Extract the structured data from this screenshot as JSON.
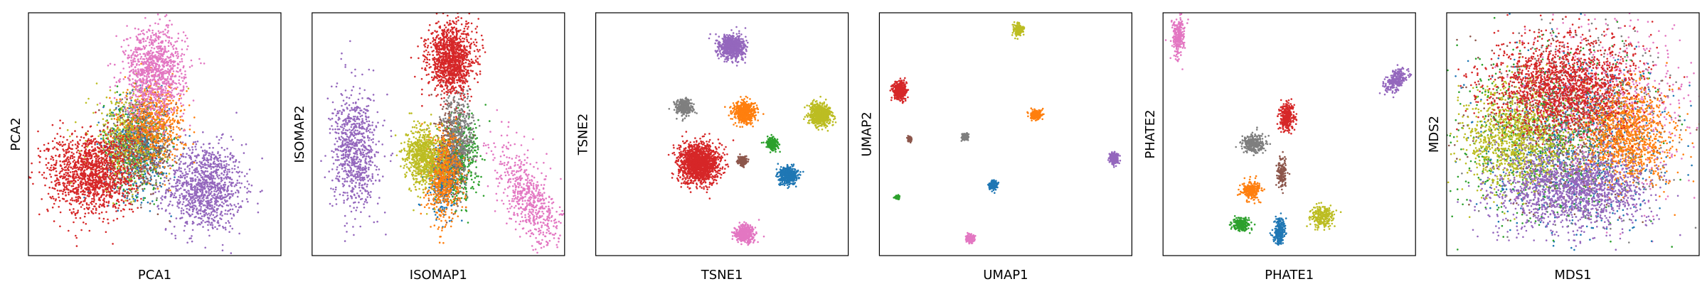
{
  "colors": {
    "blue": "#1f77b4",
    "orange": "#ff7f0e",
    "green": "#2ca02c",
    "red": "#d62728",
    "purple": "#9467bd",
    "brown": "#8c564b",
    "pink": "#e377c2",
    "gray": "#7f7f7f",
    "olive": "#bcbd22"
  },
  "chart_data": [
    {
      "type": "scatter",
      "xlabel": "PCA1",
      "ylabel": "PCA2",
      "xlim": [
        0,
        1
      ],
      "ylim": [
        0,
        1
      ],
      "ticks": "none",
      "grid": false,
      "series": [
        {
          "color": "#9467bd",
          "n": 1100,
          "cx": 0.7,
          "cy": 0.28,
          "sx": 0.075,
          "sy": 0.09,
          "rot": 0
        },
        {
          "color": "#1f77b4",
          "n": 500,
          "cx": 0.43,
          "cy": 0.45,
          "sx": 0.065,
          "sy": 0.1,
          "rot": 0
        },
        {
          "color": "#2ca02c",
          "n": 350,
          "cx": 0.42,
          "cy": 0.45,
          "sx": 0.06,
          "sy": 0.09,
          "rot": 0
        },
        {
          "color": "#7f7f7f",
          "n": 350,
          "cx": 0.44,
          "cy": 0.47,
          "sx": 0.06,
          "sy": 0.09,
          "rot": 0
        },
        {
          "color": "#bcbd22",
          "n": 450,
          "cx": 0.38,
          "cy": 0.47,
          "sx": 0.07,
          "sy": 0.1,
          "rot": 0
        },
        {
          "color": "#8c564b",
          "n": 300,
          "cx": 0.46,
          "cy": 0.45,
          "sx": 0.06,
          "sy": 0.09,
          "rot": 0
        },
        {
          "color": "#ff7f0e",
          "n": 550,
          "cx": 0.5,
          "cy": 0.55,
          "sx": 0.06,
          "sy": 0.08,
          "rot": 0
        },
        {
          "color": "#e377c2",
          "n": 1000,
          "cx": 0.5,
          "cy": 0.76,
          "sx": 0.06,
          "sy": 0.09,
          "rot": 0
        },
        {
          "color": "#d62728",
          "n": 1400,
          "cx": 0.25,
          "cy": 0.34,
          "sx": 0.085,
          "sy": 0.085,
          "rot": 0
        }
      ]
    },
    {
      "type": "scatter",
      "xlabel": "ISOMAP1",
      "ylabel": "ISOMAP2",
      "xlim": [
        0,
        1
      ],
      "ylim": [
        0,
        1
      ],
      "ticks": "none",
      "grid": false,
      "series": [
        {
          "color": "#9467bd",
          "n": 800,
          "cx": 0.17,
          "cy": 0.43,
          "sx": 0.045,
          "sy": 0.12,
          "rot": 0
        },
        {
          "color": "#e377c2",
          "n": 600,
          "cx": 0.86,
          "cy": 0.24,
          "sx": 0.045,
          "sy": 0.12,
          "rot": 0.45
        },
        {
          "color": "#1f77b4",
          "n": 400,
          "cx": 0.52,
          "cy": 0.32,
          "sx": 0.03,
          "sy": 0.07,
          "rot": 0
        },
        {
          "color": "#2ca02c",
          "n": 400,
          "cx": 0.59,
          "cy": 0.4,
          "sx": 0.035,
          "sy": 0.09,
          "rot": 0
        },
        {
          "color": "#8c564b",
          "n": 300,
          "cx": 0.55,
          "cy": 0.42,
          "sx": 0.03,
          "sy": 0.1,
          "rot": 0
        },
        {
          "color": "#7f7f7f",
          "n": 450,
          "cx": 0.58,
          "cy": 0.49,
          "sx": 0.03,
          "sy": 0.1,
          "rot": 0
        },
        {
          "color": "#ff7f0e",
          "n": 650,
          "cx": 0.52,
          "cy": 0.33,
          "sx": 0.035,
          "sy": 0.09,
          "rot": 0
        },
        {
          "color": "#bcbd22",
          "n": 700,
          "cx": 0.44,
          "cy": 0.41,
          "sx": 0.035,
          "sy": 0.06,
          "rot": 0
        },
        {
          "color": "#d62728",
          "n": 1200,
          "cx": 0.55,
          "cy": 0.81,
          "sx": 0.045,
          "sy": 0.07,
          "rot": 0
        }
      ]
    },
    {
      "type": "scatter",
      "xlabel": "TSNE1",
      "ylabel": "TSNE2",
      "xlim": [
        0,
        1
      ],
      "ylim": [
        0,
        1
      ],
      "ticks": "none",
      "grid": false,
      "series": [
        {
          "color": "#9467bd",
          "n": 700,
          "cx": 0.54,
          "cy": 0.86,
          "sx": 0.025,
          "sy": 0.025,
          "rot": 0
        },
        {
          "color": "#7f7f7f",
          "n": 350,
          "cx": 0.35,
          "cy": 0.61,
          "sx": 0.016,
          "sy": 0.016,
          "rot": 0
        },
        {
          "color": "#ff7f0e",
          "n": 550,
          "cx": 0.59,
          "cy": 0.59,
          "sx": 0.022,
          "sy": 0.022,
          "rot": 0
        },
        {
          "color": "#bcbd22",
          "n": 650,
          "cx": 0.89,
          "cy": 0.58,
          "sx": 0.022,
          "sy": 0.022,
          "rot": 0
        },
        {
          "color": "#2ca02c",
          "n": 200,
          "cx": 0.7,
          "cy": 0.46,
          "sx": 0.012,
          "sy": 0.012,
          "rot": 0
        },
        {
          "color": "#8c564b",
          "n": 150,
          "cx": 0.58,
          "cy": 0.39,
          "sx": 0.009,
          "sy": 0.009,
          "rot": 0
        },
        {
          "color": "#d62728",
          "n": 1500,
          "cx": 0.41,
          "cy": 0.38,
          "sx": 0.04,
          "sy": 0.04,
          "rot": 0
        },
        {
          "color": "#1f77b4",
          "n": 450,
          "cx": 0.76,
          "cy": 0.33,
          "sx": 0.018,
          "sy": 0.018,
          "rot": 0
        },
        {
          "color": "#e377c2",
          "n": 450,
          "cx": 0.59,
          "cy": 0.09,
          "sx": 0.018,
          "sy": 0.018,
          "rot": 0
        }
      ]
    },
    {
      "type": "scatter",
      "xlabel": "UMAP1",
      "ylabel": "UMAP2",
      "xlim": [
        0,
        1
      ],
      "ylim": [
        0,
        1
      ],
      "ticks": "none",
      "grid": false,
      "series": [
        {
          "color": "#bcbd22",
          "n": 200,
          "cx": 0.55,
          "cy": 0.93,
          "sx": 0.01,
          "sy": 0.012,
          "rot": 0
        },
        {
          "color": "#d62728",
          "n": 500,
          "cx": 0.08,
          "cy": 0.68,
          "sx": 0.012,
          "sy": 0.018,
          "rot": 0
        },
        {
          "color": "#ff7f0e",
          "n": 200,
          "cx": 0.62,
          "cy": 0.58,
          "sx": 0.011,
          "sy": 0.01,
          "rot": 0
        },
        {
          "color": "#8c564b",
          "n": 60,
          "cx": 0.12,
          "cy": 0.48,
          "sx": 0.004,
          "sy": 0.005,
          "rot": 0
        },
        {
          "color": "#7f7f7f",
          "n": 120,
          "cx": 0.34,
          "cy": 0.49,
          "sx": 0.007,
          "sy": 0.007,
          "rot": 0
        },
        {
          "color": "#9467bd",
          "n": 200,
          "cx": 0.93,
          "cy": 0.4,
          "sx": 0.01,
          "sy": 0.013,
          "rot": 0
        },
        {
          "color": "#1f77b4",
          "n": 150,
          "cx": 0.45,
          "cy": 0.29,
          "sx": 0.008,
          "sy": 0.009,
          "rot": 0
        },
        {
          "color": "#2ca02c",
          "n": 60,
          "cx": 0.07,
          "cy": 0.24,
          "sx": 0.005,
          "sy": 0.004,
          "rot": 0
        },
        {
          "color": "#e377c2",
          "n": 150,
          "cx": 0.36,
          "cy": 0.07,
          "sx": 0.008,
          "sy": 0.008,
          "rot": 0
        }
      ]
    },
    {
      "type": "scatter",
      "xlabel": "PHATE1",
      "ylabel": "PHATE2",
      "xlim": [
        0,
        1
      ],
      "ylim": [
        0,
        1
      ],
      "ticks": "none",
      "grid": false,
      "series": [
        {
          "color": "#e377c2",
          "n": 250,
          "cx": 0.06,
          "cy": 0.9,
          "sx": 0.012,
          "sy": 0.04,
          "rot": 0
        },
        {
          "color": "#9467bd",
          "n": 250,
          "cx": 0.92,
          "cy": 0.72,
          "sx": 0.015,
          "sy": 0.03,
          "rot": -0.7
        },
        {
          "color": "#d62728",
          "n": 300,
          "cx": 0.49,
          "cy": 0.57,
          "sx": 0.015,
          "sy": 0.03,
          "rot": 0
        },
        {
          "color": "#7f7f7f",
          "n": 300,
          "cx": 0.36,
          "cy": 0.46,
          "sx": 0.022,
          "sy": 0.018,
          "rot": 0
        },
        {
          "color": "#8c564b",
          "n": 150,
          "cx": 0.47,
          "cy": 0.34,
          "sx": 0.01,
          "sy": 0.035,
          "rot": 0
        },
        {
          "color": "#ff7f0e",
          "n": 250,
          "cx": 0.35,
          "cy": 0.27,
          "sx": 0.018,
          "sy": 0.018,
          "rot": 0
        },
        {
          "color": "#bcbd22",
          "n": 250,
          "cx": 0.63,
          "cy": 0.16,
          "sx": 0.02,
          "sy": 0.022,
          "rot": 0
        },
        {
          "color": "#2ca02c",
          "n": 200,
          "cx": 0.31,
          "cy": 0.13,
          "sx": 0.018,
          "sy": 0.015,
          "rot": 0
        },
        {
          "color": "#1f77b4",
          "n": 250,
          "cx": 0.46,
          "cy": 0.1,
          "sx": 0.012,
          "sy": 0.025,
          "rot": 0
        }
      ]
    },
    {
      "type": "scatter",
      "xlabel": "MDS1",
      "ylabel": "MDS2",
      "xlim": [
        0,
        1
      ],
      "ylim": [
        0,
        1
      ],
      "ticks": "none",
      "grid": false,
      "series": [
        {
          "color": "#e377c2",
          "n": 700,
          "cx": 0.66,
          "cy": 0.62,
          "sx": 0.18,
          "sy": 0.18,
          "rot": 0
        },
        {
          "color": "#1f77b4",
          "n": 700,
          "cx": 0.5,
          "cy": 0.45,
          "sx": 0.18,
          "sy": 0.18,
          "rot": 0
        },
        {
          "color": "#2ca02c",
          "n": 700,
          "cx": 0.4,
          "cy": 0.48,
          "sx": 0.18,
          "sy": 0.18,
          "rot": 0
        },
        {
          "color": "#7f7f7f",
          "n": 500,
          "cx": 0.55,
          "cy": 0.55,
          "sx": 0.18,
          "sy": 0.18,
          "rot": 0
        },
        {
          "color": "#8c564b",
          "n": 500,
          "cx": 0.45,
          "cy": 0.52,
          "sx": 0.18,
          "sy": 0.18,
          "rot": 0
        },
        {
          "color": "#bcbd22",
          "n": 1100,
          "cx": 0.27,
          "cy": 0.48,
          "sx": 0.1,
          "sy": 0.11,
          "rot": 0
        },
        {
          "color": "#ff7f0e",
          "n": 1100,
          "cx": 0.72,
          "cy": 0.49,
          "sx": 0.09,
          "sy": 0.1,
          "rot": 0
        },
        {
          "color": "#9467bd",
          "n": 1500,
          "cx": 0.5,
          "cy": 0.27,
          "sx": 0.15,
          "sy": 0.08,
          "rot": 0
        },
        {
          "color": "#d62728",
          "n": 1700,
          "cx": 0.46,
          "cy": 0.7,
          "sx": 0.15,
          "sy": 0.1,
          "rot": 0
        }
      ]
    }
  ]
}
